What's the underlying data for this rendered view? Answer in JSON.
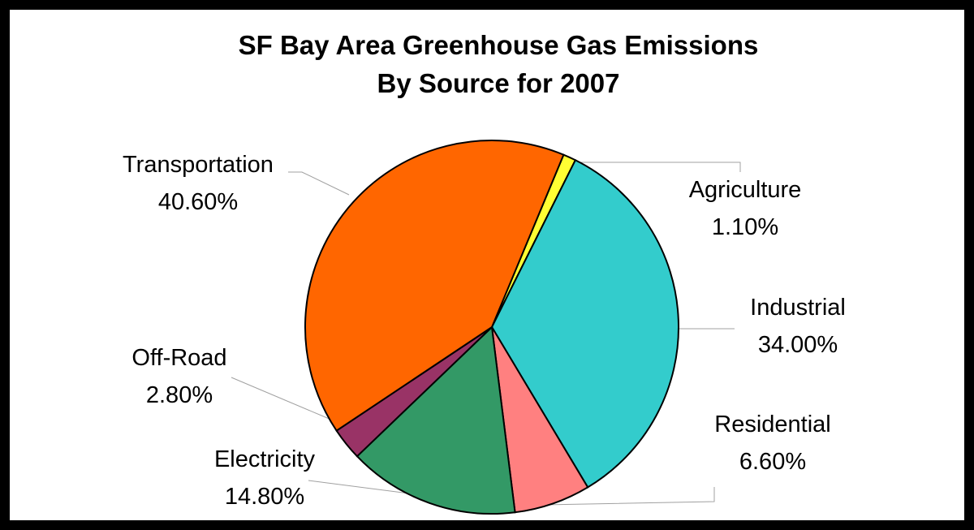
{
  "chart_data": {
    "type": "pie",
    "title": "SF Bay Area Greenhouse Gas Emissions",
    "subtitle": "By Source for 2007",
    "slices": [
      {
        "label": "Agriculture",
        "value_text": "1.10%",
        "value": 1.1,
        "color": "#FFFF33"
      },
      {
        "label": "Industrial",
        "value_text": "34.00%",
        "value": 34.0,
        "color": "#33CCCC"
      },
      {
        "label": "Residential",
        "value_text": "6.60%",
        "value": 6.6,
        "color": "#FF8080"
      },
      {
        "label": "Electricity",
        "value_text": "14.80%",
        "value": 14.8,
        "color": "#339966"
      },
      {
        "label": "Off-Road",
        "value_text": "2.80%",
        "value": 2.8,
        "color": "#993366"
      },
      {
        "label": "Transportation",
        "value_text": "40.60%",
        "value": 40.6,
        "color": "#FF6600"
      }
    ],
    "start_angle_deg": 22.6,
    "direction": "clockwise",
    "legend": "none"
  }
}
